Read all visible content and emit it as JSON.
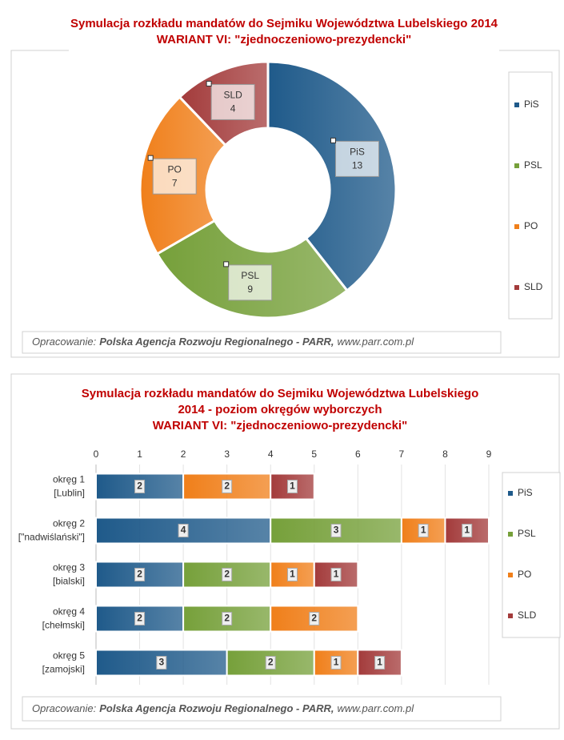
{
  "chart_data": [
    {
      "type": "donut",
      "title": [
        "Symulacja rozkładu mandatów do Sejmiku Województwa Lubelskiego 2014",
        "WARIANT VI: \"zjednoczeniowo-prezydencki\""
      ],
      "categories": [
        "PiS",
        "PSL",
        "PO",
        "SLD"
      ],
      "values": [
        13,
        9,
        7,
        4
      ],
      "colors": [
        "#1f5a8a",
        "#76a03a",
        "#f07f1a",
        "#a33b3b"
      ],
      "legend": "right",
      "note": {
        "label": "Opracowanie:",
        "org": "Polska Agencja Rozwoju Regionalnego - PARR,",
        "url": "www.parr.com.pl"
      }
    },
    {
      "type": "stacked-bar-horizontal",
      "title": [
        "Symulacja rozkładu mandatów do Sejmiku Województwa Lubelskiego",
        "2014 - poziom okręgów wyborczych",
        "WARIANT VI: \"zjednoczeniowo-prezydencki\""
      ],
      "categories": [
        [
          "okręg 1",
          "[Lublin]"
        ],
        [
          "okręg 2",
          "[\"nadwiślański\"]"
        ],
        [
          "okręg 3",
          "[bialski]"
        ],
        [
          "okręg 4",
          "[chełmski]"
        ],
        [
          "okręg 5",
          "[zamojski]"
        ]
      ],
      "series": [
        {
          "name": "PiS",
          "color": "#1f5a8a",
          "values": [
            2,
            4,
            2,
            2,
            3
          ]
        },
        {
          "name": "PSL",
          "color": "#76a03a",
          "values": [
            null,
            3,
            2,
            2,
            2
          ]
        },
        {
          "name": "PO",
          "color": "#f07f1a",
          "values": [
            2,
            1,
            1,
            2,
            1
          ]
        },
        {
          "name": "SLD",
          "color": "#a33b3b",
          "values": [
            1,
            1,
            1,
            null,
            1
          ]
        }
      ],
      "xlim": [
        0,
        9
      ],
      "xticks": [
        0,
        1,
        2,
        3,
        4,
        5,
        6,
        7,
        8,
        9
      ],
      "grid": true,
      "legend": "right",
      "note": {
        "label": "Opracowanie:",
        "org": "Polska Agencja Rozwoju Regionalnego - PARR,",
        "url": "www.parr.com.pl"
      }
    }
  ]
}
